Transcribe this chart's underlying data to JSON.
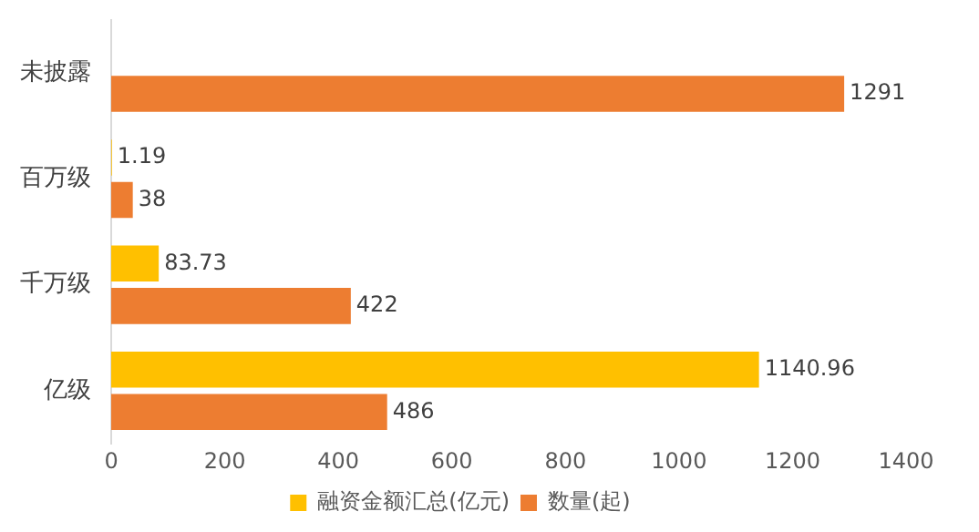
{
  "chart_data": {
    "type": "bar",
    "orientation": "horizontal",
    "categories": [
      "未披露",
      "百万级",
      "千万级",
      "亿级"
    ],
    "series": [
      {
        "name": "融资金额汇总(亿元)",
        "color": "#ffc000",
        "values": [
          null,
          1.19,
          83.73,
          1140.96
        ]
      },
      {
        "name": "数量(起)",
        "color": "#ed7d31",
        "values": [
          1291,
          38,
          422,
          486
        ]
      }
    ],
    "xlim": [
      0,
      1400
    ],
    "xticks": [
      0,
      200,
      400,
      600,
      800,
      1000,
      1200,
      1400
    ],
    "grid": false,
    "legend": "bottom",
    "data_labels": true
  }
}
